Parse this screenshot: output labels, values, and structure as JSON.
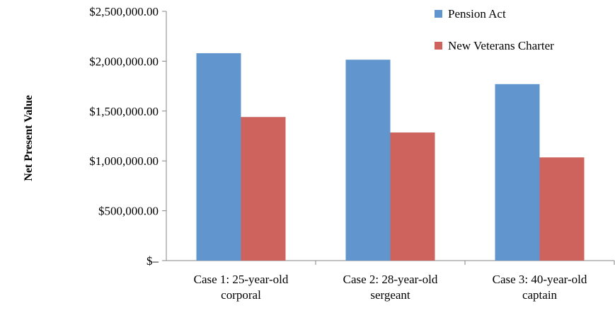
{
  "chart_data": {
    "type": "bar",
    "title": "",
    "xlabel": "",
    "ylabel": "Net Present Value",
    "categories": [
      [
        "Case 1: 25-year-old",
        "corporal"
      ],
      [
        "Case 2: 28-year-old",
        "sergeant"
      ],
      [
        "Case 3: 40-year-old",
        "captain"
      ]
    ],
    "series": [
      {
        "name": "Pension Act",
        "color": "#6096cd",
        "values": [
          2080000,
          2015000,
          1770000
        ]
      },
      {
        "name": "New Veterans Charter",
        "color": "#cd635c",
        "values": [
          1440000,
          1285000,
          1035000
        ]
      }
    ],
    "ylim": [
      0,
      2500000
    ],
    "yticks": [
      0,
      500000,
      1000000,
      1500000,
      2000000,
      2500000
    ],
    "ytick_labels": [
      "$–",
      "$500,000.00",
      "$1,000,000.00",
      "$1,500,000.00",
      "$2,000,000.00",
      "$2,500,000.00"
    ],
    "grid": false,
    "legend": "top-right"
  }
}
